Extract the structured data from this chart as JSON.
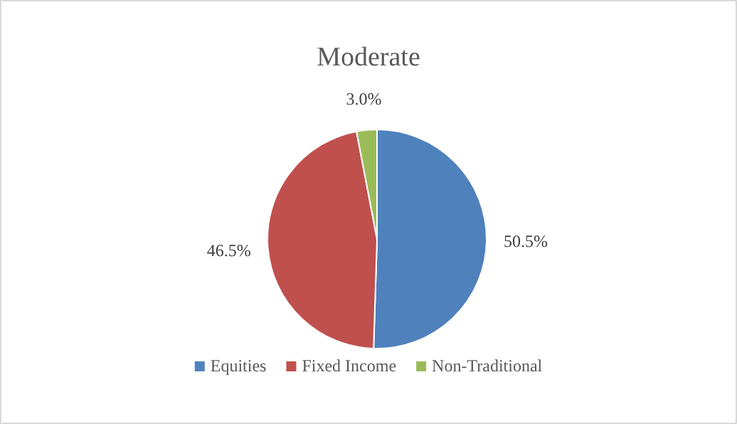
{
  "chart_data": {
    "type": "pie",
    "title": "Moderate",
    "categories": [
      "Equities",
      "Fixed Income",
      "Non-Traditional"
    ],
    "values": [
      50.5,
      46.5,
      3.0
    ],
    "colors": [
      "#4f81bd",
      "#c0504d",
      "#9bbb59"
    ],
    "value_labels": [
      "50.5%",
      "46.5%",
      "3.0%"
    ],
    "legend": "bottom"
  }
}
